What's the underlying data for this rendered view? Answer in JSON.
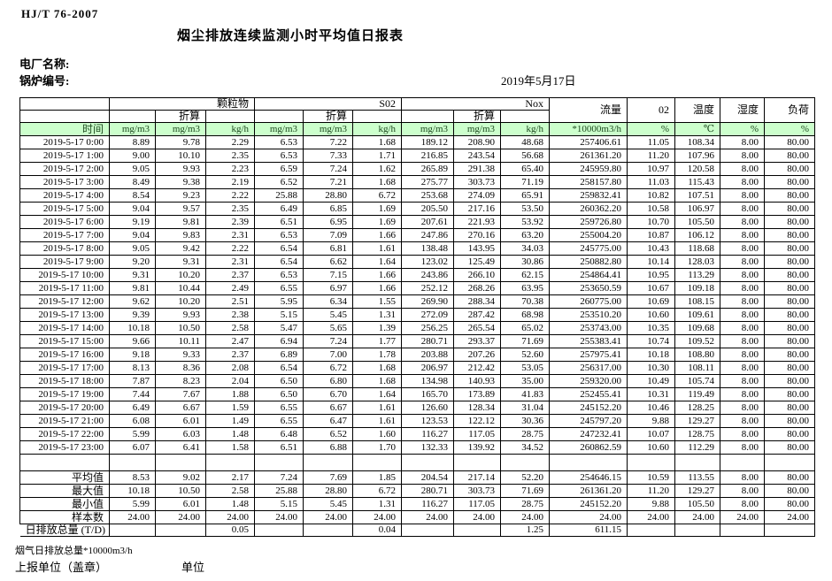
{
  "header": {
    "standard": "HJ/T  76-2007",
    "title": "烟尘排放连续监测小时平均值日报表",
    "plant_label": "电厂名称:",
    "boiler_label": "锅炉编号:",
    "date": "2019年5月17日"
  },
  "colors": {
    "header_green": "#ccffcc",
    "border": "#000000"
  },
  "table": {
    "time_header": "时间",
    "converted_label": "折算",
    "groups": [
      {
        "label": "颗粒物",
        "units": [
          "mg/m3",
          "mg/m3",
          "kg/h"
        ]
      },
      {
        "label": "S02",
        "units": [
          "mg/m3",
          "mg/m3",
          "kg/h"
        ]
      },
      {
        "label": "Nox",
        "units": [
          "mg/m3",
          "mg/m3",
          "kg/h"
        ]
      }
    ],
    "scalar_cols": [
      {
        "label": "流量",
        "unit": "*10000m3/h"
      },
      {
        "label": "02",
        "unit": "%"
      },
      {
        "label": "温度",
        "unit": "℃"
      },
      {
        "label": "湿度",
        "unit": "%"
      },
      {
        "label": "负荷",
        "unit": "%"
      }
    ],
    "rows": [
      {
        "time": "2019-5-17 0:00",
        "values": [
          "8.89",
          "9.78",
          "2.29",
          "6.53",
          "7.22",
          "1.68",
          "189.12",
          "208.90",
          "48.68",
          "257406.61",
          "11.05",
          "108.34",
          "8.00",
          "80.00"
        ]
      },
      {
        "time": "2019-5-17 1:00",
        "values": [
          "9.00",
          "10.10",
          "2.35",
          "6.53",
          "7.33",
          "1.71",
          "216.85",
          "243.54",
          "56.68",
          "261361.20",
          "11.20",
          "107.96",
          "8.00",
          "80.00"
        ]
      },
      {
        "time": "2019-5-17 2:00",
        "values": [
          "9.05",
          "9.93",
          "2.23",
          "6.59",
          "7.24",
          "1.62",
          "265.89",
          "291.38",
          "65.40",
          "245959.80",
          "10.97",
          "120.58",
          "8.00",
          "80.00"
        ]
      },
      {
        "time": "2019-5-17 3:00",
        "values": [
          "8.49",
          "9.38",
          "2.19",
          "6.52",
          "7.21",
          "1.68",
          "275.77",
          "303.73",
          "71.19",
          "258157.80",
          "11.03",
          "115.43",
          "8.00",
          "80.00"
        ]
      },
      {
        "time": "2019-5-17 4:00",
        "values": [
          "8.54",
          "9.23",
          "2.22",
          "25.88",
          "28.80",
          "6.72",
          "253.68",
          "274.09",
          "65.91",
          "259832.41",
          "10.82",
          "107.51",
          "8.00",
          "80.00"
        ]
      },
      {
        "time": "2019-5-17 5:00",
        "values": [
          "9.04",
          "9.57",
          "2.35",
          "6.49",
          "6.85",
          "1.69",
          "205.50",
          "217.16",
          "53.50",
          "260362.20",
          "10.58",
          "106.97",
          "8.00",
          "80.00"
        ]
      },
      {
        "time": "2019-5-17 6:00",
        "values": [
          "9.19",
          "9.81",
          "2.39",
          "6.51",
          "6.95",
          "1.69",
          "207.61",
          "221.93",
          "53.92",
          "259726.80",
          "10.70",
          "105.50",
          "8.00",
          "80.00"
        ]
      },
      {
        "time": "2019-5-17 7:00",
        "values": [
          "9.04",
          "9.83",
          "2.31",
          "6.53",
          "7.09",
          "1.66",
          "247.86",
          "270.16",
          "63.20",
          "255004.20",
          "10.87",
          "106.12",
          "8.00",
          "80.00"
        ]
      },
      {
        "time": "2019-5-17 8:00",
        "values": [
          "9.05",
          "9.42",
          "2.22",
          "6.54",
          "6.81",
          "1.61",
          "138.48",
          "143.95",
          "34.03",
          "245775.00",
          "10.43",
          "118.68",
          "8.00",
          "80.00"
        ]
      },
      {
        "time": "2019-5-17 9:00",
        "values": [
          "9.20",
          "9.31",
          "2.31",
          "6.54",
          "6.62",
          "1.64",
          "123.02",
          "125.49",
          "30.86",
          "250882.80",
          "10.14",
          "128.03",
          "8.00",
          "80.00"
        ]
      },
      {
        "time": "2019-5-17 10:00",
        "values": [
          "9.31",
          "10.20",
          "2.37",
          "6.53",
          "7.15",
          "1.66",
          "243.86",
          "266.10",
          "62.15",
          "254864.41",
          "10.95",
          "113.29",
          "8.00",
          "80.00"
        ]
      },
      {
        "time": "2019-5-17 11:00",
        "values": [
          "9.81",
          "10.44",
          "2.49",
          "6.55",
          "6.97",
          "1.66",
          "252.12",
          "268.26",
          "63.95",
          "253650.59",
          "10.67",
          "109.18",
          "8.00",
          "80.00"
        ]
      },
      {
        "time": "2019-5-17 12:00",
        "values": [
          "9.62",
          "10.20",
          "2.51",
          "5.95",
          "6.34",
          "1.55",
          "269.90",
          "288.34",
          "70.38",
          "260775.00",
          "10.69",
          "108.15",
          "8.00",
          "80.00"
        ]
      },
      {
        "time": "2019-5-17 13:00",
        "values": [
          "9.39",
          "9.93",
          "2.38",
          "5.15",
          "5.45",
          "1.31",
          "272.09",
          "287.42",
          "68.98",
          "253510.20",
          "10.60",
          "109.61",
          "8.00",
          "80.00"
        ]
      },
      {
        "time": "2019-5-17 14:00",
        "values": [
          "10.18",
          "10.50",
          "2.58",
          "5.47",
          "5.65",
          "1.39",
          "256.25",
          "265.54",
          "65.02",
          "253743.00",
          "10.35",
          "109.68",
          "8.00",
          "80.00"
        ]
      },
      {
        "time": "2019-5-17 15:00",
        "values": [
          "9.66",
          "10.11",
          "2.47",
          "6.94",
          "7.24",
          "1.77",
          "280.71",
          "293.37",
          "71.69",
          "255383.41",
          "10.74",
          "109.52",
          "8.00",
          "80.00"
        ]
      },
      {
        "time": "2019-5-17 16:00",
        "values": [
          "9.18",
          "9.33",
          "2.37",
          "6.89",
          "7.00",
          "1.78",
          "203.88",
          "207.26",
          "52.60",
          "257975.41",
          "10.18",
          "108.80",
          "8.00",
          "80.00"
        ]
      },
      {
        "time": "2019-5-17 17:00",
        "values": [
          "8.13",
          "8.36",
          "2.08",
          "6.54",
          "6.72",
          "1.68",
          "206.97",
          "212.42",
          "53.05",
          "256317.00",
          "10.30",
          "108.11",
          "8.00",
          "80.00"
        ]
      },
      {
        "time": "2019-5-17 18:00",
        "values": [
          "7.87",
          "8.23",
          "2.04",
          "6.50",
          "6.80",
          "1.68",
          "134.98",
          "140.93",
          "35.00",
          "259320.00",
          "10.49",
          "105.74",
          "8.00",
          "80.00"
        ]
      },
      {
        "time": "2019-5-17 19:00",
        "values": [
          "7.44",
          "7.67",
          "1.88",
          "6.50",
          "6.70",
          "1.64",
          "165.70",
          "173.89",
          "41.83",
          "252455.41",
          "10.31",
          "119.49",
          "8.00",
          "80.00"
        ]
      },
      {
        "time": "2019-5-17 20:00",
        "values": [
          "6.49",
          "6.67",
          "1.59",
          "6.55",
          "6.67",
          "1.61",
          "126.60",
          "128.34",
          "31.04",
          "245152.20",
          "10.46",
          "128.25",
          "8.00",
          "80.00"
        ]
      },
      {
        "time": "2019-5-17 21:00",
        "values": [
          "6.08",
          "6.01",
          "1.49",
          "6.55",
          "6.47",
          "1.61",
          "123.53",
          "122.12",
          "30.36",
          "245797.20",
          "9.88",
          "129.27",
          "8.00",
          "80.00"
        ]
      },
      {
        "time": "2019-5-17 22:00",
        "values": [
          "5.99",
          "6.03",
          "1.48",
          "6.48",
          "6.52",
          "1.60",
          "116.27",
          "117.05",
          "28.75",
          "247232.41",
          "10.07",
          "128.75",
          "8.00",
          "80.00"
        ]
      },
      {
        "time": "2019-5-17 23:00",
        "values": [
          "6.07",
          "6.41",
          "1.58",
          "6.51",
          "6.88",
          "1.70",
          "132.33",
          "139.92",
          "34.52",
          "260862.59",
          "10.60",
          "112.29",
          "8.00",
          "80.00"
        ]
      }
    ],
    "summary_rows": [
      {
        "label": "平均值",
        "values": [
          "8.53",
          "9.02",
          "2.17",
          "7.24",
          "7.69",
          "1.85",
          "204.54",
          "217.14",
          "52.20",
          "254646.15",
          "10.59",
          "113.55",
          "8.00",
          "80.00"
        ]
      },
      {
        "label": "最大值",
        "values": [
          "10.18",
          "10.50",
          "2.58",
          "25.88",
          "28.80",
          "6.72",
          "280.71",
          "303.73",
          "71.69",
          "261361.20",
          "11.20",
          "129.27",
          "8.00",
          "80.00"
        ]
      },
      {
        "label": "最小值",
        "values": [
          "5.99",
          "6.01",
          "1.48",
          "5.15",
          "5.45",
          "1.31",
          "116.27",
          "117.05",
          "28.75",
          "245152.20",
          "9.88",
          "105.50",
          "8.00",
          "80.00"
        ]
      },
      {
        "label": "样本数",
        "values": [
          "24.00",
          "24.00",
          "24.00",
          "24.00",
          "24.00",
          "24.00",
          "24.00",
          "24.00",
          "24.00",
          "24.00",
          "24.00",
          "24.00",
          "24.00",
          "24.00"
        ]
      }
    ],
    "total_row": {
      "label": "日排放总量 (T/D)",
      "values": [
        "",
        "",
        "0.05",
        "",
        "",
        "0.04",
        "",
        "",
        "1.25",
        "611.15",
        "",
        "",
        "",
        ""
      ]
    }
  },
  "footer": {
    "flow_note": "烟气日排放总量*10000m3/h",
    "report_unit_label": "上报单位（盖章）",
    "unit_label": "单位"
  }
}
